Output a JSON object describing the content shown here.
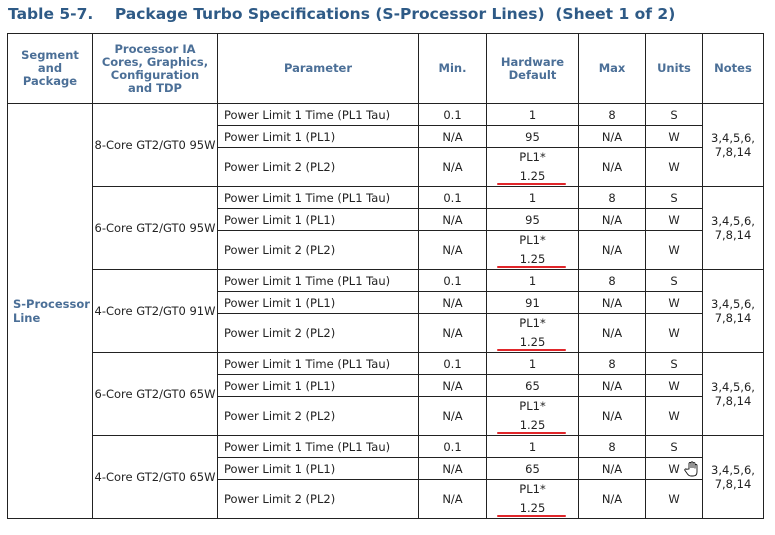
{
  "title": "Table 5-7.    Package Turbo Specifications (S-Processor Lines)  (Sheet 1 of 2)",
  "headers": {
    "segment": "Segment and Package",
    "processor": "Processor IA Cores, Graphics, Configuration and TDP",
    "parameter": "Parameter",
    "min": "Min.",
    "hw_default": "Hardware Default",
    "max": "Max",
    "units": "Units",
    "notes": "Notes"
  },
  "segment": "S-Processor Line",
  "groups": [
    {
      "config": "8-Core GT2/GT0 95W",
      "notes": "3,4,5,6, 7,8,14",
      "rows": [
        {
          "param": "Power Limit 1 Time (PL1 Tau)",
          "min": "0.1",
          "hw": "1",
          "max": "8",
          "units": "S"
        },
        {
          "param": "Power Limit 1 (PL1)",
          "min": "N/A",
          "hw": "95",
          "max": "N/A",
          "units": "W"
        },
        {
          "param": "Power Limit 2 (PL2)",
          "min": "N/A",
          "hw": "PL1* 1.25",
          "max": "N/A",
          "units": "W"
        }
      ]
    },
    {
      "config": "6-Core GT2/GT0 95W",
      "notes": "3,4,5,6, 7,8,14",
      "rows": [
        {
          "param": "Power Limit 1 Time (PL1 Tau)",
          "min": "0.1",
          "hw": "1",
          "max": "8",
          "units": "S"
        },
        {
          "param": "Power Limit 1 (PL1)",
          "min": "N/A",
          "hw": "95",
          "max": "N/A",
          "units": "W"
        },
        {
          "param": "Power Limit 2 (PL2)",
          "min": "N/A",
          "hw": "PL1* 1.25",
          "max": "N/A",
          "units": "W"
        }
      ]
    },
    {
      "config": "4-Core GT2/GT0 91W",
      "notes": "3,4,5,6, 7,8,14",
      "rows": [
        {
          "param": "Power Limit 1 Time (PL1 Tau)",
          "min": "0.1",
          "hw": "1",
          "max": "8",
          "units": "S"
        },
        {
          "param": "Power Limit 1 (PL1)",
          "min": "N/A",
          "hw": "91",
          "max": "N/A",
          "units": "W"
        },
        {
          "param": "Power Limit 2 (PL2)",
          "min": "N/A",
          "hw": "PL1* 1.25",
          "max": "N/A",
          "units": "W"
        }
      ]
    },
    {
      "config": "6-Core GT2/GT0 65W",
      "notes": "3,4,5,6, 7,8,14",
      "rows": [
        {
          "param": "Power Limit 1 Time (PL1 Tau)",
          "min": "0.1",
          "hw": "1",
          "max": "8",
          "units": "S"
        },
        {
          "param": "Power Limit 1 (PL1)",
          "min": "N/A",
          "hw": "65",
          "max": "N/A",
          "units": "W"
        },
        {
          "param": "Power Limit 2 (PL2)",
          "min": "N/A",
          "hw": "PL1* 1.25",
          "max": "N/A",
          "units": "W"
        }
      ]
    },
    {
      "config": "4-Core GT2/GT0 65W",
      "notes": "3,4,5,6, 7,8,14",
      "rows": [
        {
          "param": "Power Limit 1 Time (PL1 Tau)",
          "min": "0.1",
          "hw": "1",
          "max": "8",
          "units": "S"
        },
        {
          "param": "Power Limit 1 (PL1)",
          "min": "N/A",
          "hw": "65",
          "max": "N/A",
          "units": "W"
        },
        {
          "param": "Power Limit 2 (PL2)",
          "min": "N/A",
          "hw": "PL1* 1.25",
          "max": "N/A",
          "units": "W"
        }
      ]
    }
  ],
  "highlight_color": "#e0262a",
  "cursor_icon": "hand-pointer-icon"
}
